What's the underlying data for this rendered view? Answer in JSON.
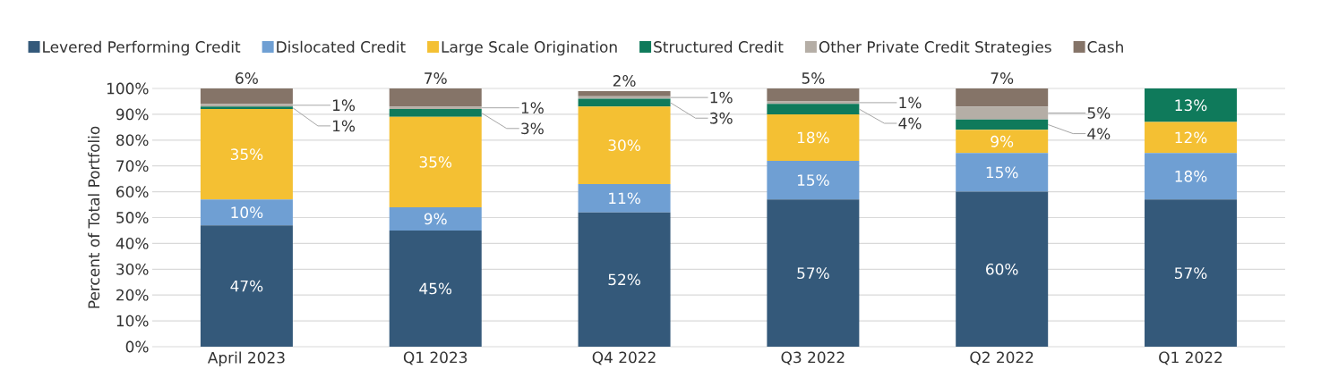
{
  "chart_data": {
    "type": "bar",
    "stacked": true,
    "ylabel": "Percent of Total Portfolio",
    "categories": [
      "April 2023",
      "Q1 2023",
      "Q4 2022",
      "Q3 2022",
      "Q2 2022",
      "Q1 2022"
    ],
    "series": [
      {
        "name": "Levered Performing Credit",
        "color": "#34597a",
        "values": [
          47,
          45,
          52,
          57,
          60,
          57
        ],
        "value_labels": [
          "47%",
          "45%",
          "52%",
          "57%",
          "60%",
          "57%"
        ]
      },
      {
        "name": "Dislocated Credit",
        "color": "#6f9fd3",
        "values": [
          10,
          9,
          11,
          15,
          15,
          18
        ],
        "value_labels": [
          "10%",
          "9%",
          "11%",
          "15%",
          "15%",
          "18%"
        ]
      },
      {
        "name": "Large Scale Origination",
        "color": "#f4c033",
        "values": [
          35,
          35,
          30,
          18,
          9,
          12
        ],
        "value_labels": [
          "35%",
          "35%",
          "30%",
          "18%",
          "9%",
          "12%"
        ]
      },
      {
        "name": "Structured Credit",
        "color": "#0f7a5b",
        "values": [
          1,
          3,
          3,
          4,
          4,
          13
        ],
        "value_labels": [
          "1%",
          "3%",
          "3%",
          "4%",
          "4%",
          "13%"
        ]
      },
      {
        "name": "Other Private Credit Strategies",
        "color": "#b5aea6",
        "values": [
          1,
          1,
          1,
          1,
          5,
          null
        ],
        "value_labels": [
          "1%",
          "1%",
          "1%",
          "1%",
          "5%",
          null
        ]
      },
      {
        "name": "Cash",
        "color": "#857468",
        "values": [
          6,
          7,
          2,
          5,
          7,
          null
        ],
        "value_labels": [
          "6%",
          "7%",
          "2%",
          "5%",
          "7%",
          null
        ]
      }
    ],
    "ylim": [
      0,
      100
    ],
    "yticks": [
      {
        "value": 0,
        "label": "0%"
      },
      {
        "value": 10,
        "label": "10%"
      },
      {
        "value": 20,
        "label": "20%"
      },
      {
        "value": 30,
        "label": "30%"
      },
      {
        "value": 40,
        "label": "40%"
      },
      {
        "value": 50,
        "label": "50%"
      },
      {
        "value": 60,
        "label": "60%"
      },
      {
        "value": 70,
        "label": "70%"
      },
      {
        "value": 80,
        "label": "80%"
      },
      {
        "value": 90,
        "label": "90%"
      },
      {
        "value": 100,
        "label": "100%"
      }
    ],
    "grid": "y",
    "legend": "top"
  }
}
